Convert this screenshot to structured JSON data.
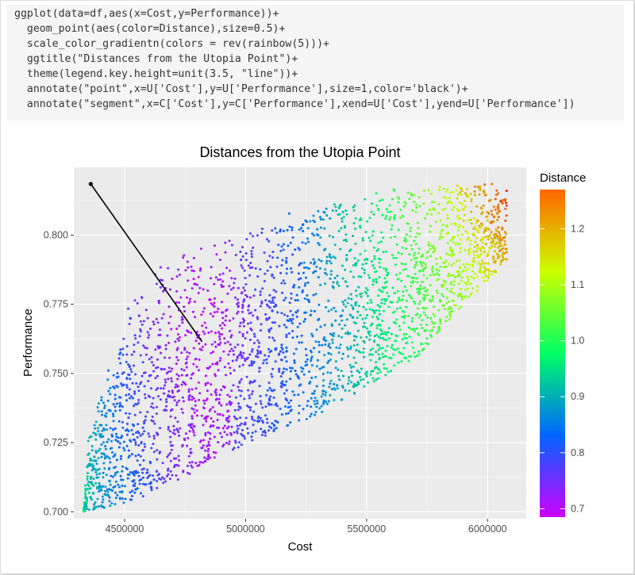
{
  "code": {
    "lines": [
      "ggplot(data=df,aes(x=Cost,y=Performance))+",
      "  geom_point(aes(color=Distance),size=0.5)+",
      "  scale_color_gradientn(colors = rev(rainbow(5)))+",
      "  ggtitle(\"Distances from the Utopia Point\")+",
      "  theme(legend.key.height=unit(3.5, \"line\"))+",
      "  annotate(\"point\",x=U['Cost'],y=U['Performance'],size=1,color='black')+",
      "  annotate(\"segment\",x=C['Cost'],y=C['Performance'],xend=U['Cost'],yend=U['Performance'])"
    ]
  },
  "chart_data": {
    "type": "scatter",
    "title": "Distances from the Utopia Point",
    "xlabel": "Cost",
    "ylabel": "Performance",
    "xlim": [
      4290000,
      6160000
    ],
    "ylim": [
      0.6975,
      0.8245
    ],
    "x_ticks": [
      4500000,
      5000000,
      5500000,
      6000000
    ],
    "x_tick_labels": [
      "4500000",
      "5000000",
      "5500000",
      "6000000"
    ],
    "y_ticks": [
      0.7,
      0.725,
      0.75,
      0.775,
      0.8
    ],
    "y_tick_labels": [
      "0.700",
      "0.725",
      "0.750",
      "0.775",
      "0.800"
    ],
    "grid": true,
    "legend": {
      "title": "Distance",
      "placement": "right",
      "range": [
        0.685,
        1.27
      ],
      "ticks": [
        0.7,
        0.8,
        0.9,
        1.0,
        1.1,
        1.2
      ],
      "tick_labels": [
        "0.7",
        "0.8",
        "0.9",
        "1.0",
        "1.1",
        "1.2"
      ],
      "colors": [
        "#cc00ff",
        "#0066ff",
        "#00ff66",
        "#ccff00",
        "#ff0000"
      ]
    },
    "utopia_point": {
      "x": 4360000,
      "y": 0.8185
    },
    "segment": {
      "x": 4820000,
      "y": 0.7615,
      "xend": 4360000,
      "yend": 0.8185
    },
    "point_cloud": {
      "count": 3000,
      "frontier": [
        [
          4330000,
          0.7
        ],
        [
          4350000,
          0.726
        ],
        [
          4400000,
          0.742
        ],
        [
          4450000,
          0.757
        ],
        [
          4500000,
          0.771
        ],
        [
          4550000,
          0.781
        ],
        [
          4600000,
          0.787
        ],
        [
          4700000,
          0.792
        ],
        [
          4800000,
          0.796
        ],
        [
          4900000,
          0.799
        ],
        [
          5000000,
          0.802
        ],
        [
          5100000,
          0.806
        ],
        [
          5200000,
          0.809
        ],
        [
          5300000,
          0.811
        ],
        [
          5400000,
          0.812
        ],
        [
          5500000,
          0.814
        ],
        [
          5600000,
          0.817
        ],
        [
          5700000,
          0.818
        ],
        [
          5800000,
          0.819
        ],
        [
          5900000,
          0.819
        ],
        [
          6000000,
          0.819
        ],
        [
          6080000,
          0.818
        ]
      ],
      "lower_edge": [
        [
          4330000,
          0.7
        ],
        [
          4500000,
          0.702
        ],
        [
          4700000,
          0.71
        ],
        [
          4900000,
          0.72
        ],
        [
          5100000,
          0.728
        ],
        [
          5300000,
          0.735
        ],
        [
          5500000,
          0.745
        ],
        [
          5700000,
          0.755
        ],
        [
          5900000,
          0.775
        ],
        [
          6080000,
          0.79
        ]
      ]
    }
  }
}
